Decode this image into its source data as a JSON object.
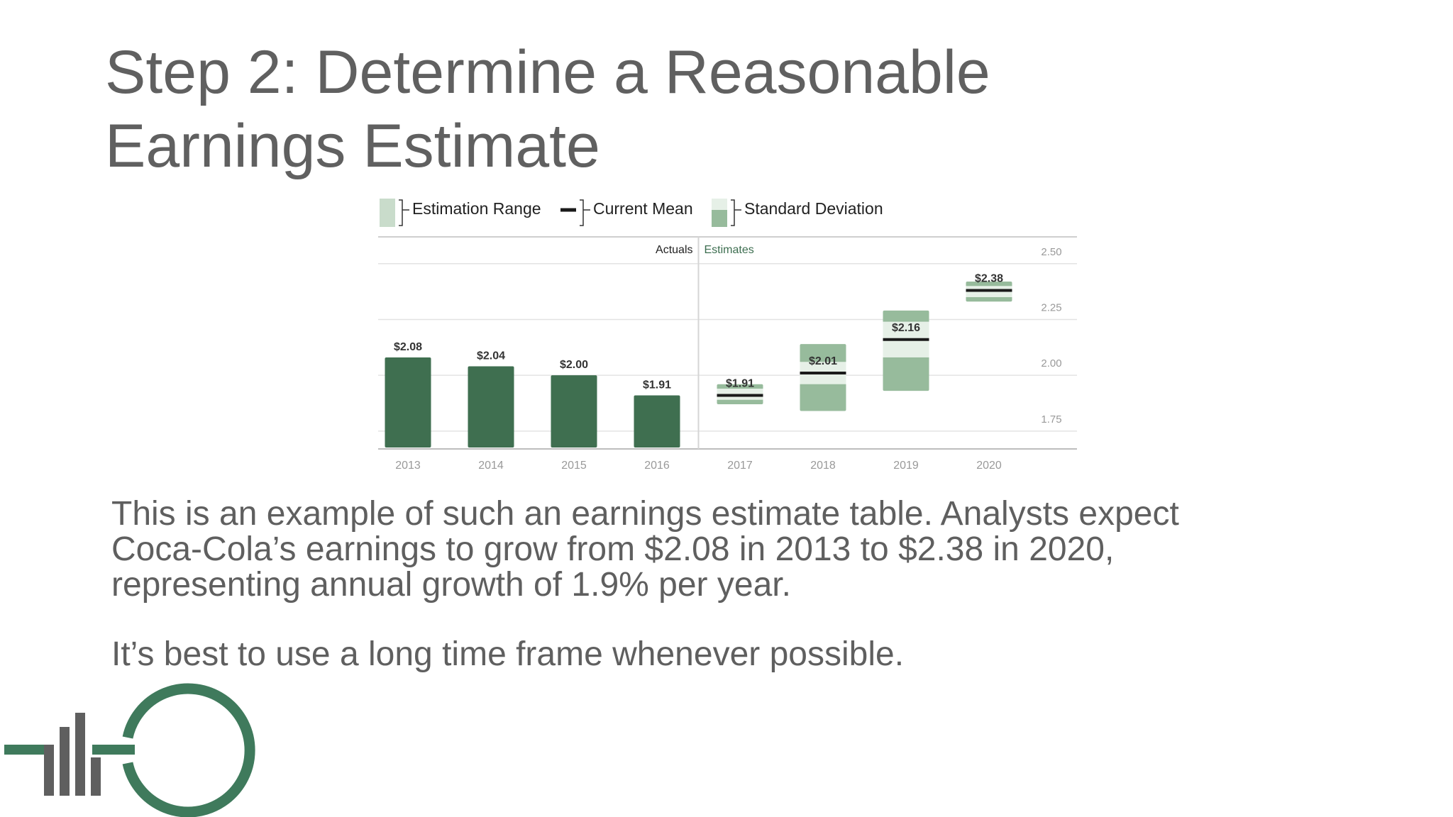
{
  "header": {
    "title_lines": [
      "Step 2: Determine a Reasonable",
      "Earnings Estimate"
    ]
  },
  "chart_data": {
    "type": "bar",
    "categories": [
      "2013",
      "2014",
      "2015",
      "2016",
      "2017",
      "2018",
      "2019",
      "2020"
    ],
    "series": [
      {
        "name": "Actuals",
        "color": "#3f6f50",
        "values": [
          2.08,
          2.04,
          2.0,
          1.91,
          null,
          null,
          null,
          null
        ],
        "value_labels": [
          "$2.08",
          "$2.04",
          "$2.00",
          "$1.91",
          null,
          null,
          null,
          null
        ]
      },
      {
        "name": "Estimation Range",
        "color": "#97bb9c",
        "low": [
          null,
          null,
          null,
          null,
          1.87,
          1.84,
          1.93,
          2.33
        ],
        "high": [
          null,
          null,
          null,
          null,
          1.96,
          2.14,
          2.29,
          2.42
        ]
      },
      {
        "name": "Current Mean",
        "color": "#1a1a1a",
        "values": [
          null,
          null,
          null,
          null,
          1.91,
          2.01,
          2.16,
          2.38
        ],
        "value_labels": [
          null,
          null,
          null,
          null,
          "$1.91",
          "$2.01",
          "$2.16",
          "$2.38"
        ]
      },
      {
        "name": "Standard Deviation",
        "color": "#e6f0e7",
        "low": [
          null,
          null,
          null,
          null,
          1.89,
          1.96,
          2.08,
          2.35
        ],
        "high": [
          null,
          null,
          null,
          null,
          1.94,
          2.06,
          2.24,
          2.4
        ]
      }
    ],
    "annotations": [
      "Estimates"
    ],
    "ylim": [
      1.67,
      2.62
    ],
    "yticks": [
      1.75,
      {
        "value": 2,
        "label": "2.00"
      },
      2.25,
      {
        "value": 2.5,
        "label": "2.50"
      }
    ],
    "grid": true
  },
  "body": {
    "paragraphs": [
      {
        "lines": [
          "This is an example of such an earnings estimate table. Analysts expect",
          "Coca-Cola’s earnings to grow from $2.08 in 2013 to $2.38 in 2020,",
          "representing annual growth of 1.9% per year."
        ]
      },
      {
        "lines": [
          "It’s best to use a long time frame whenever possible."
        ]
      }
    ]
  }
}
